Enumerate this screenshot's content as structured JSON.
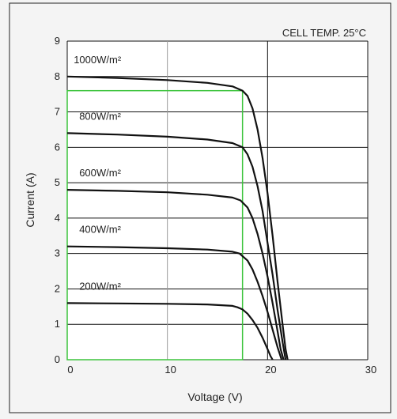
{
  "chart_data": {
    "type": "line",
    "title": "",
    "annotation": "CELL TEMP. 25°C",
    "xlabel": "Voltage (V)",
    "ylabel": "Current  (A)",
    "xlim": [
      0,
      30
    ],
    "ylim": [
      0,
      9
    ],
    "x_ticks": [
      "0",
      "10",
      "20",
      "30"
    ],
    "y_ticks": [
      "0",
      "1",
      "2",
      "3",
      "4",
      "5",
      "6",
      "7",
      "8",
      "9"
    ],
    "grid": true,
    "series": [
      {
        "name": "1000W/m²",
        "points": [
          [
            0,
            8.0
          ],
          [
            5,
            7.96
          ],
          [
            10,
            7.9
          ],
          [
            14,
            7.82
          ],
          [
            16.5,
            7.72
          ],
          [
            17.5,
            7.6
          ],
          [
            18,
            7.45
          ],
          [
            18.5,
            7.1
          ],
          [
            19,
            6.5
          ],
          [
            19.5,
            5.7
          ],
          [
            20,
            4.7
          ],
          [
            20.5,
            3.5
          ],
          [
            21,
            2.2
          ],
          [
            21.5,
            1.0
          ],
          [
            21.8,
            0.3
          ],
          [
            22,
            0
          ]
        ]
      },
      {
        "name": "800W/m²",
        "points": [
          [
            0,
            6.4
          ],
          [
            5,
            6.36
          ],
          [
            10,
            6.3
          ],
          [
            14,
            6.22
          ],
          [
            16.5,
            6.12
          ],
          [
            17.5,
            6.0
          ],
          [
            18,
            5.8
          ],
          [
            18.5,
            5.45
          ],
          [
            19,
            4.9
          ],
          [
            19.5,
            4.2
          ],
          [
            20,
            3.3
          ],
          [
            20.5,
            2.4
          ],
          [
            21,
            1.4
          ],
          [
            21.5,
            0.5
          ],
          [
            21.8,
            0
          ]
        ]
      },
      {
        "name": "600W/m²",
        "points": [
          [
            0,
            4.8
          ],
          [
            5,
            4.77
          ],
          [
            10,
            4.73
          ],
          [
            14,
            4.66
          ],
          [
            16.5,
            4.58
          ],
          [
            17.3,
            4.5
          ],
          [
            18,
            4.3
          ],
          [
            18.5,
            4.0
          ],
          [
            19,
            3.55
          ],
          [
            19.5,
            3.0
          ],
          [
            20,
            2.35
          ],
          [
            20.5,
            1.6
          ],
          [
            21,
            0.8
          ],
          [
            21.3,
            0.3
          ],
          [
            21.6,
            0
          ]
        ]
      },
      {
        "name": "400W/m²",
        "points": [
          [
            0,
            3.2
          ],
          [
            5,
            3.18
          ],
          [
            10,
            3.15
          ],
          [
            14,
            3.11
          ],
          [
            16.5,
            3.05
          ],
          [
            17.2,
            3.0
          ],
          [
            18,
            2.8
          ],
          [
            18.5,
            2.55
          ],
          [
            19,
            2.2
          ],
          [
            19.5,
            1.8
          ],
          [
            20,
            1.35
          ],
          [
            20.5,
            0.85
          ],
          [
            21,
            0.35
          ],
          [
            21.4,
            0
          ]
        ]
      },
      {
        "name": "200W/m²",
        "points": [
          [
            0,
            1.6
          ],
          [
            5,
            1.59
          ],
          [
            10,
            1.58
          ],
          [
            14,
            1.56
          ],
          [
            16.5,
            1.52
          ],
          [
            17,
            1.48
          ],
          [
            17.5,
            1.42
          ],
          [
            18,
            1.3
          ],
          [
            18.5,
            1.12
          ],
          [
            19,
            0.9
          ],
          [
            19.5,
            0.62
          ],
          [
            20,
            0.3
          ],
          [
            20.3,
            0.1
          ],
          [
            20.5,
            0
          ]
        ]
      }
    ],
    "rectangle": {
      "x": [
        0,
        17.5
      ],
      "y": [
        0,
        7.6
      ],
      "color": "#3cc43c"
    },
    "curve_color": "#111111",
    "grid_color": "#111111",
    "minor_grid_color": "#9a9a9a"
  }
}
